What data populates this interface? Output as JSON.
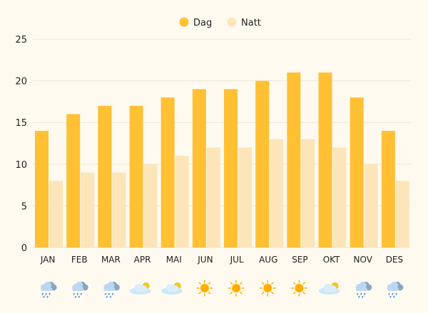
{
  "chart_data": {
    "type": "bar",
    "categories": [
      "JAN",
      "FEB",
      "MAR",
      "APR",
      "MAI",
      "JUN",
      "JUL",
      "AUG",
      "SEP",
      "OKT",
      "NOV",
      "DES"
    ],
    "series": [
      {
        "name": "Dag",
        "color": "#ffc034",
        "values": [
          14,
          16,
          17,
          17,
          18,
          19,
          19,
          20,
          21,
          21,
          18,
          14
        ]
      },
      {
        "name": "Natt",
        "color": "#fbe5b9",
        "values": [
          8,
          9,
          9,
          10,
          11,
          12,
          12,
          13,
          13,
          12,
          10,
          8
        ]
      }
    ],
    "ylim": [
      0,
      25
    ],
    "yticks": [
      0,
      5,
      10,
      15,
      20,
      25
    ],
    "grid": true,
    "legend": "top-center",
    "weather_icons": [
      "rain",
      "rain",
      "rain",
      "partly-cloudy",
      "partly-cloudy",
      "sun",
      "sun",
      "sun",
      "sun",
      "partly-cloudy",
      "rain",
      "rain"
    ]
  }
}
